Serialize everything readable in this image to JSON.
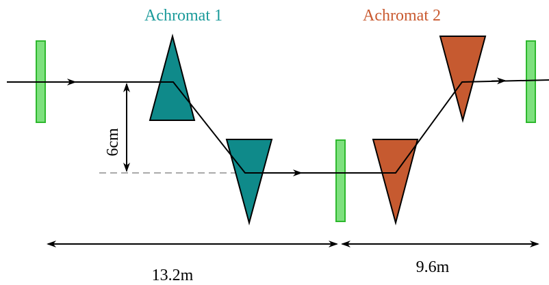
{
  "labels": {
    "achromat1": "Achromat 1",
    "achromat2": "Achromat 2",
    "offset": "6cm",
    "length1": "13.2m",
    "length2": "9.6m"
  },
  "colors": {
    "achromat1": "#1a9a9a",
    "achromat2": "#c95a30",
    "achromat1_fill": "#0f8a8a",
    "achromat2_fill": "#c65a30",
    "element_fill": "#7ee07e",
    "element_stroke": "#2db82d",
    "beam": "#000000",
    "reference": "#aaaaaa"
  }
}
